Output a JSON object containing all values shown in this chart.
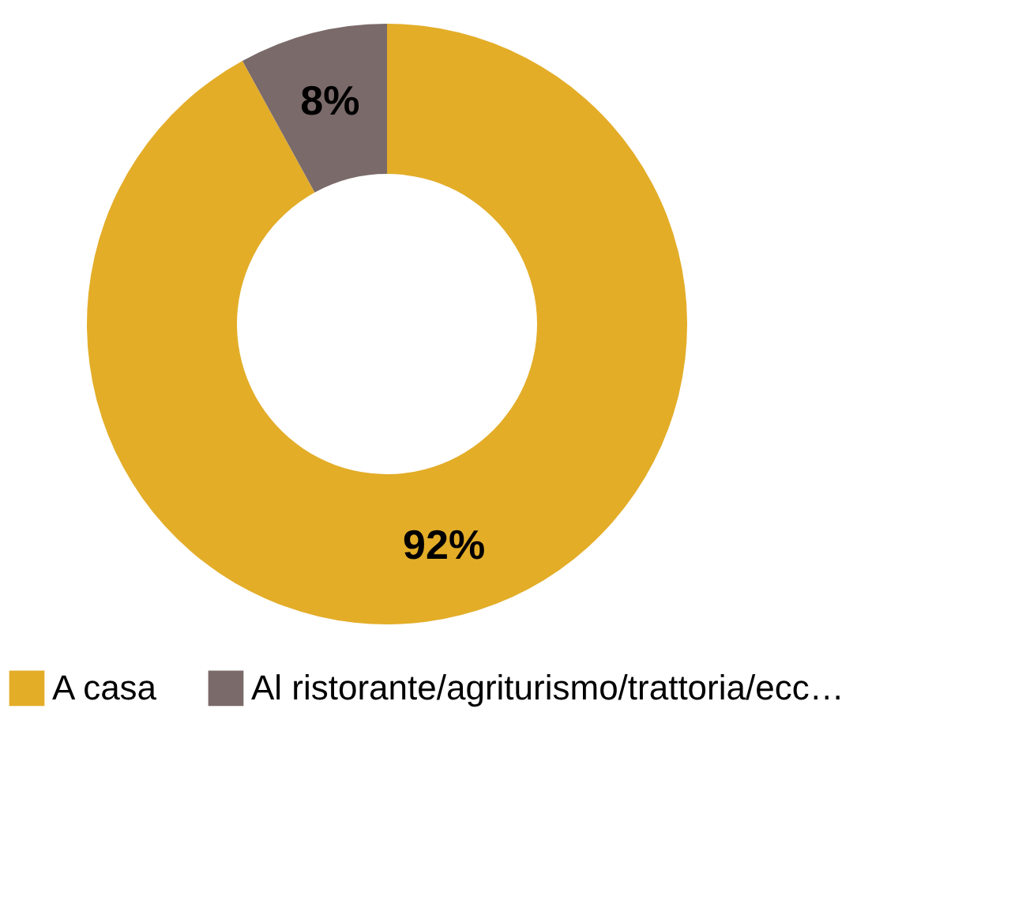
{
  "chart_data": {
    "type": "donut",
    "categories": [
      "A casa",
      "Al ristorante/agriturismo/trattoria/ecc…"
    ],
    "values": [
      92,
      8
    ],
    "colors": [
      "#e3ad28",
      "#7b6a6a"
    ],
    "value_labels": [
      "92%",
      "8%"
    ],
    "legend": "bottom"
  }
}
